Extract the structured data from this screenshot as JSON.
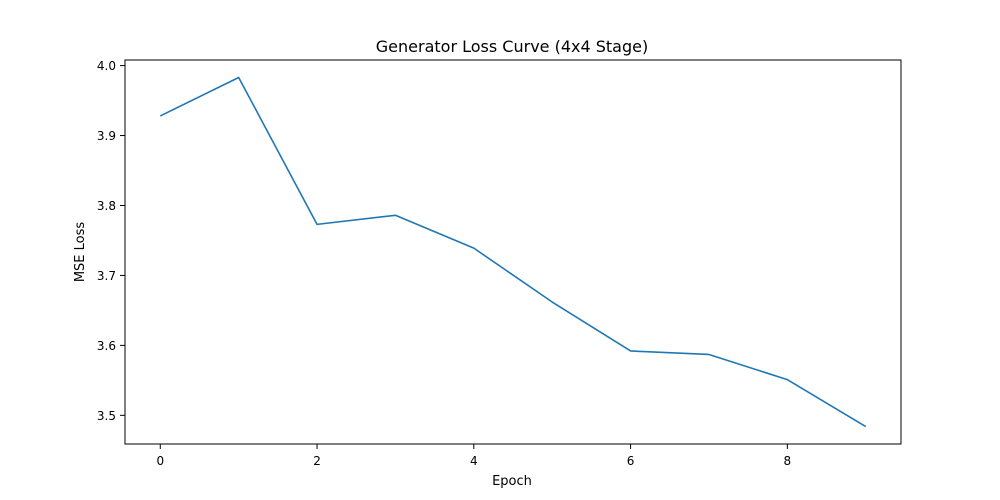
{
  "chart_data": {
    "type": "line",
    "title": "Generator Loss Curve (4x4 Stage)",
    "xlabel": "Epoch",
    "ylabel": "MSE Loss",
    "x": [
      0,
      1,
      2,
      3,
      4,
      5,
      6,
      7,
      8,
      9
    ],
    "series": [
      {
        "values": [
          3.928,
          3.983,
          3.773,
          3.786,
          3.739,
          3.662,
          3.592,
          3.587,
          3.551,
          3.484
        ],
        "color": "#1f77b4"
      }
    ],
    "xlim": [
      -0.45,
      9.45
    ],
    "ylim": [
      3.459,
      4.008
    ],
    "xticks": [
      0,
      2,
      4,
      6,
      8
    ],
    "yticks": [
      3.5,
      3.6,
      3.7,
      3.8,
      3.9,
      4.0
    ],
    "xtick_labels": [
      "0",
      "2",
      "4",
      "6",
      "8"
    ],
    "ytick_labels": [
      "3.5",
      "3.6",
      "3.7",
      "3.8",
      "3.9",
      "4.0"
    ],
    "grid": false,
    "legend": false
  }
}
